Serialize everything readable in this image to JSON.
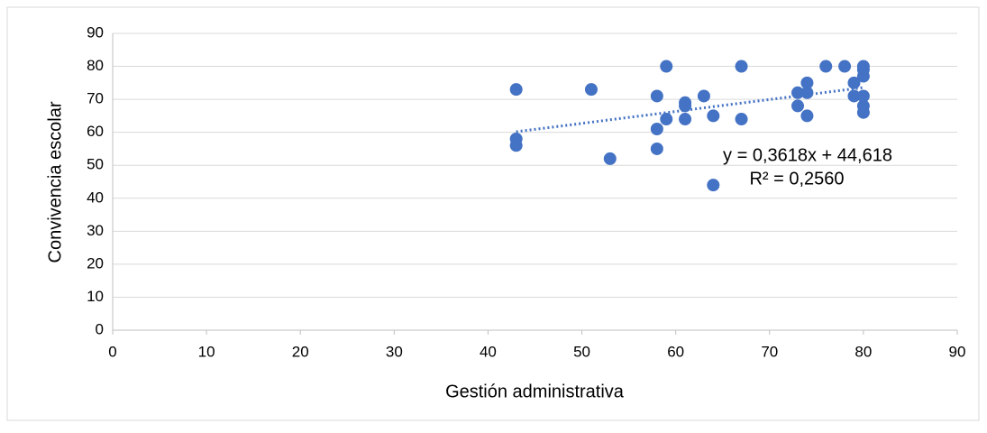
{
  "chart_data": {
    "type": "scatter",
    "x_label": "Gestión administrativa",
    "y_label": "Convivencia escolar",
    "series": [
      {
        "name": "Convivencia escolar",
        "color": "#4472c4",
        "x": [
          43,
          43,
          43,
          51,
          53,
          58,
          58,
          58,
          59,
          59,
          61,
          61,
          61,
          63,
          64,
          64,
          67,
          67,
          73,
          73,
          74,
          74,
          74,
          76,
          78,
          79,
          79,
          80,
          80,
          80,
          80,
          80,
          80
        ],
        "values": [
          73,
          58,
          56,
          73,
          52,
          71,
          61,
          55,
          80,
          64,
          69,
          68,
          64,
          71,
          65,
          44,
          80,
          64,
          72,
          68,
          75,
          72,
          65,
          80,
          80,
          75,
          71,
          80,
          79,
          77,
          71,
          68,
          66
        ]
      }
    ],
    "trendline": {
      "slope": 0.3618,
      "intercept": 44.618,
      "label": "y = 0,3618x + 44,618",
      "r2_label": "R² = 0,2560",
      "color": "#4472c4"
    },
    "xlim": [
      0,
      90
    ],
    "xticks": [
      0,
      10,
      20,
      30,
      40,
      50,
      60,
      70,
      80,
      90
    ],
    "ylim": [
      0,
      90
    ],
    "yticks": [
      0,
      10,
      20,
      30,
      40,
      50,
      60,
      70,
      80,
      90
    ],
    "grid": true
  }
}
